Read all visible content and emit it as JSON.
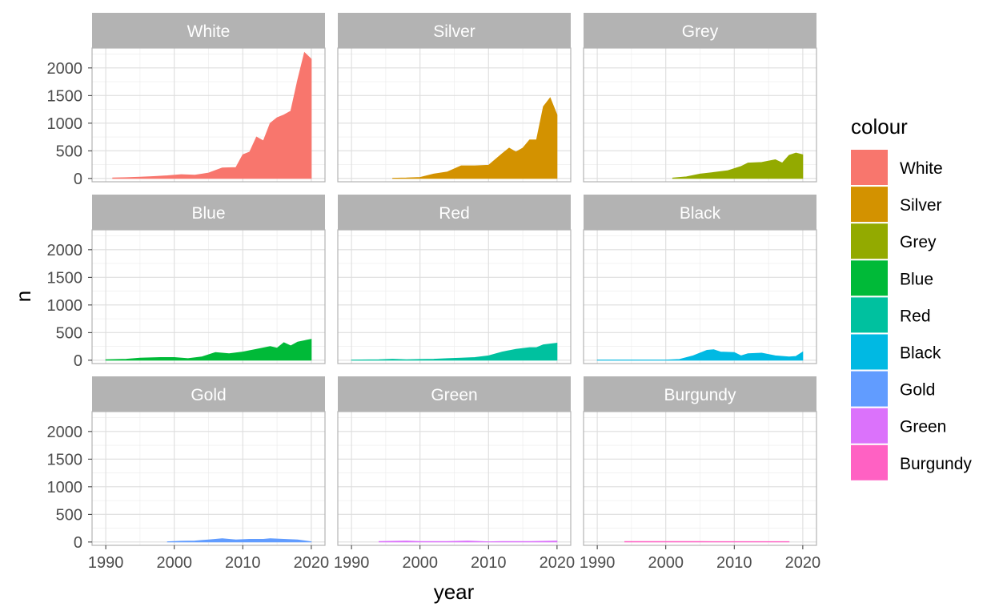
{
  "chart_data": {
    "type": "area",
    "facet_layout": "3x3",
    "xlabel": "year",
    "ylabel": "n",
    "xlim": [
      1988,
      2022
    ],
    "ylim": [
      -60,
      2360
    ],
    "x_ticks": [
      1990,
      2000,
      2010,
      2020
    ],
    "y_ticks": [
      0,
      500,
      1000,
      1500,
      2000
    ],
    "grid": true,
    "legend": {
      "title": "colour",
      "placement": "right",
      "items": [
        "White",
        "Silver",
        "Grey",
        "Blue",
        "Red",
        "Black",
        "Gold",
        "Green",
        "Burgundy"
      ]
    },
    "panels": [
      {
        "name": "White",
        "color": "#F8766D",
        "x": [
          1991,
          1993,
          1995,
          1997,
          1999,
          2001,
          2003,
          2005,
          2007,
          2009,
          2010,
          2011,
          2012,
          2013,
          2014,
          2015,
          2016,
          2017,
          2018,
          2019,
          2020
        ],
        "values": [
          10,
          15,
          25,
          35,
          50,
          70,
          60,
          100,
          190,
          200,
          430,
          480,
          750,
          680,
          1000,
          1100,
          1150,
          1220,
          1780,
          2280,
          2160
        ]
      },
      {
        "name": "Silver",
        "color": "#D39200",
        "x": [
          1996,
          1998,
          2000,
          2002,
          2004,
          2006,
          2008,
          2010,
          2012,
          2013,
          2014,
          2015,
          2016,
          2017,
          2018,
          2019,
          2020
        ],
        "values": [
          5,
          10,
          20,
          80,
          120,
          230,
          230,
          240,
          450,
          550,
          480,
          550,
          700,
          700,
          1300,
          1460,
          1150
        ]
      },
      {
        "name": "Grey",
        "color": "#93AA00",
        "x": [
          2001,
          2003,
          2005,
          2007,
          2009,
          2011,
          2012,
          2014,
          2016,
          2017,
          2018,
          2019,
          2020
        ],
        "values": [
          10,
          30,
          80,
          110,
          140,
          220,
          280,
          290,
          340,
          280,
          420,
          460,
          430
        ]
      },
      {
        "name": "Blue",
        "color": "#00BA38",
        "x": [
          1990,
          1993,
          1995,
          1998,
          2000,
          2002,
          2004,
          2006,
          2008,
          2010,
          2012,
          2014,
          2015,
          2016,
          2017,
          2018,
          2020
        ],
        "values": [
          10,
          20,
          40,
          50,
          50,
          30,
          60,
          140,
          120,
          150,
          200,
          250,
          220,
          320,
          260,
          330,
          380
        ]
      },
      {
        "name": "Red",
        "color": "#00C19F",
        "x": [
          1990,
          1994,
          1996,
          1998,
          2000,
          2002,
          2004,
          2006,
          2008,
          2010,
          2012,
          2014,
          2016,
          2017,
          2018,
          2020
        ],
        "values": [
          5,
          10,
          20,
          10,
          15,
          20,
          30,
          40,
          50,
          80,
          150,
          200,
          230,
          230,
          280,
          310
        ]
      },
      {
        "name": "Black",
        "color": "#00B9E3",
        "x": [
          1990,
          1995,
          2000,
          2002,
          2004,
          2006,
          2007,
          2008,
          2010,
          2011,
          2012,
          2014,
          2016,
          2018,
          2019,
          2020
        ],
        "values": [
          5,
          5,
          5,
          15,
          80,
          180,
          190,
          150,
          140,
          80,
          120,
          130,
          80,
          60,
          70,
          150
        ]
      },
      {
        "name": "Gold",
        "color": "#619CFF",
        "x": [
          1999,
          2001,
          2003,
          2005,
          2007,
          2009,
          2011,
          2013,
          2014,
          2016,
          2018,
          2020
        ],
        "values": [
          5,
          15,
          20,
          40,
          60,
          40,
          50,
          50,
          60,
          50,
          40,
          5
        ]
      },
      {
        "name": "Green",
        "color": "#DB72FB",
        "x": [
          1994,
          1998,
          2000,
          2004,
          2007,
          2010,
          2012,
          2016,
          2020
        ],
        "values": [
          10,
          20,
          10,
          10,
          20,
          5,
          10,
          10,
          20
        ]
      },
      {
        "name": "Burgundy",
        "color": "#FF61C3",
        "x": [
          1994,
          1995,
          2004,
          2005,
          2013,
          2018
        ],
        "values": [
          10,
          10,
          10,
          10,
          8,
          8
        ]
      }
    ]
  }
}
